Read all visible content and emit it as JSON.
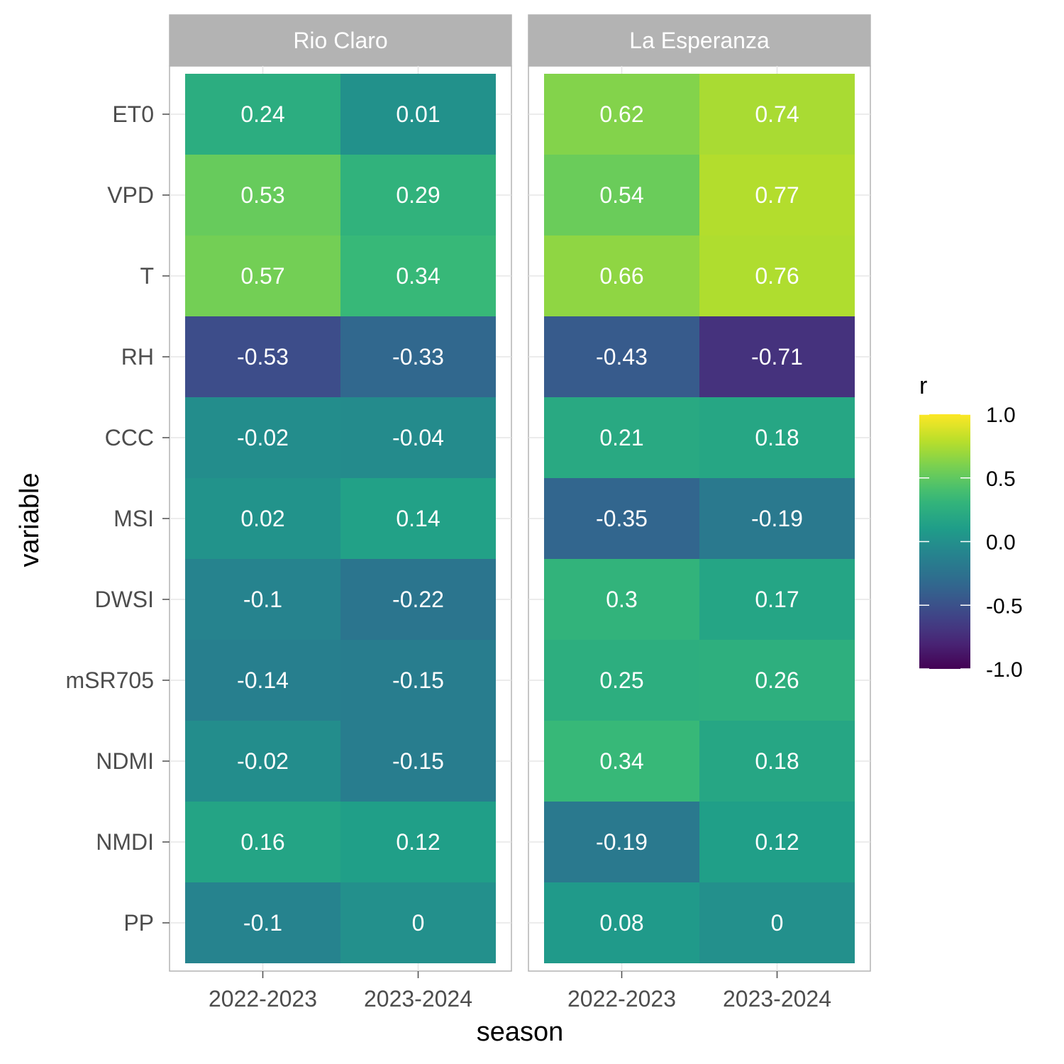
{
  "chart_data": {
    "type": "heatmap",
    "xlabel": "season",
    "ylabel": "variable",
    "legend_title": "r",
    "legend_position": "right",
    "colorscale": "viridis",
    "color_limits": [
      -1.0,
      1.0
    ],
    "legend_ticks": [
      "1.0",
      "0.5",
      "0.0",
      "-0.5",
      "-1.0"
    ],
    "legend_tick_values": [
      1.0,
      0.5,
      0.0,
      -0.5,
      -1.0
    ],
    "x_categories": [
      "2022-2023",
      "2023-2024"
    ],
    "y_categories": [
      "ET0",
      "VPD",
      "T",
      "RH",
      "CCC",
      "MSI",
      "DWSI",
      "mSR705",
      "NDMI",
      "NMDI",
      "PP"
    ],
    "facets": [
      {
        "name": "Rio Claro",
        "values": [
          [
            0.24,
            0.01
          ],
          [
            0.53,
            0.29
          ],
          [
            0.57,
            0.34
          ],
          [
            -0.53,
            -0.33
          ],
          [
            -0.02,
            -0.04
          ],
          [
            0.02,
            0.14
          ],
          [
            -0.1,
            -0.22
          ],
          [
            -0.14,
            -0.15
          ],
          [
            -0.02,
            -0.15
          ],
          [
            0.16,
            0.12
          ],
          [
            -0.1,
            0
          ]
        ]
      },
      {
        "name": "La Esperanza",
        "values": [
          [
            0.62,
            0.74
          ],
          [
            0.54,
            0.77
          ],
          [
            0.66,
            0.76
          ],
          [
            -0.43,
            -0.71
          ],
          [
            0.21,
            0.18
          ],
          [
            -0.35,
            -0.19
          ],
          [
            0.3,
            0.17
          ],
          [
            0.25,
            0.26
          ],
          [
            0.34,
            0.18
          ],
          [
            -0.19,
            0.12
          ],
          [
            0.08,
            0
          ]
        ]
      }
    ]
  }
}
